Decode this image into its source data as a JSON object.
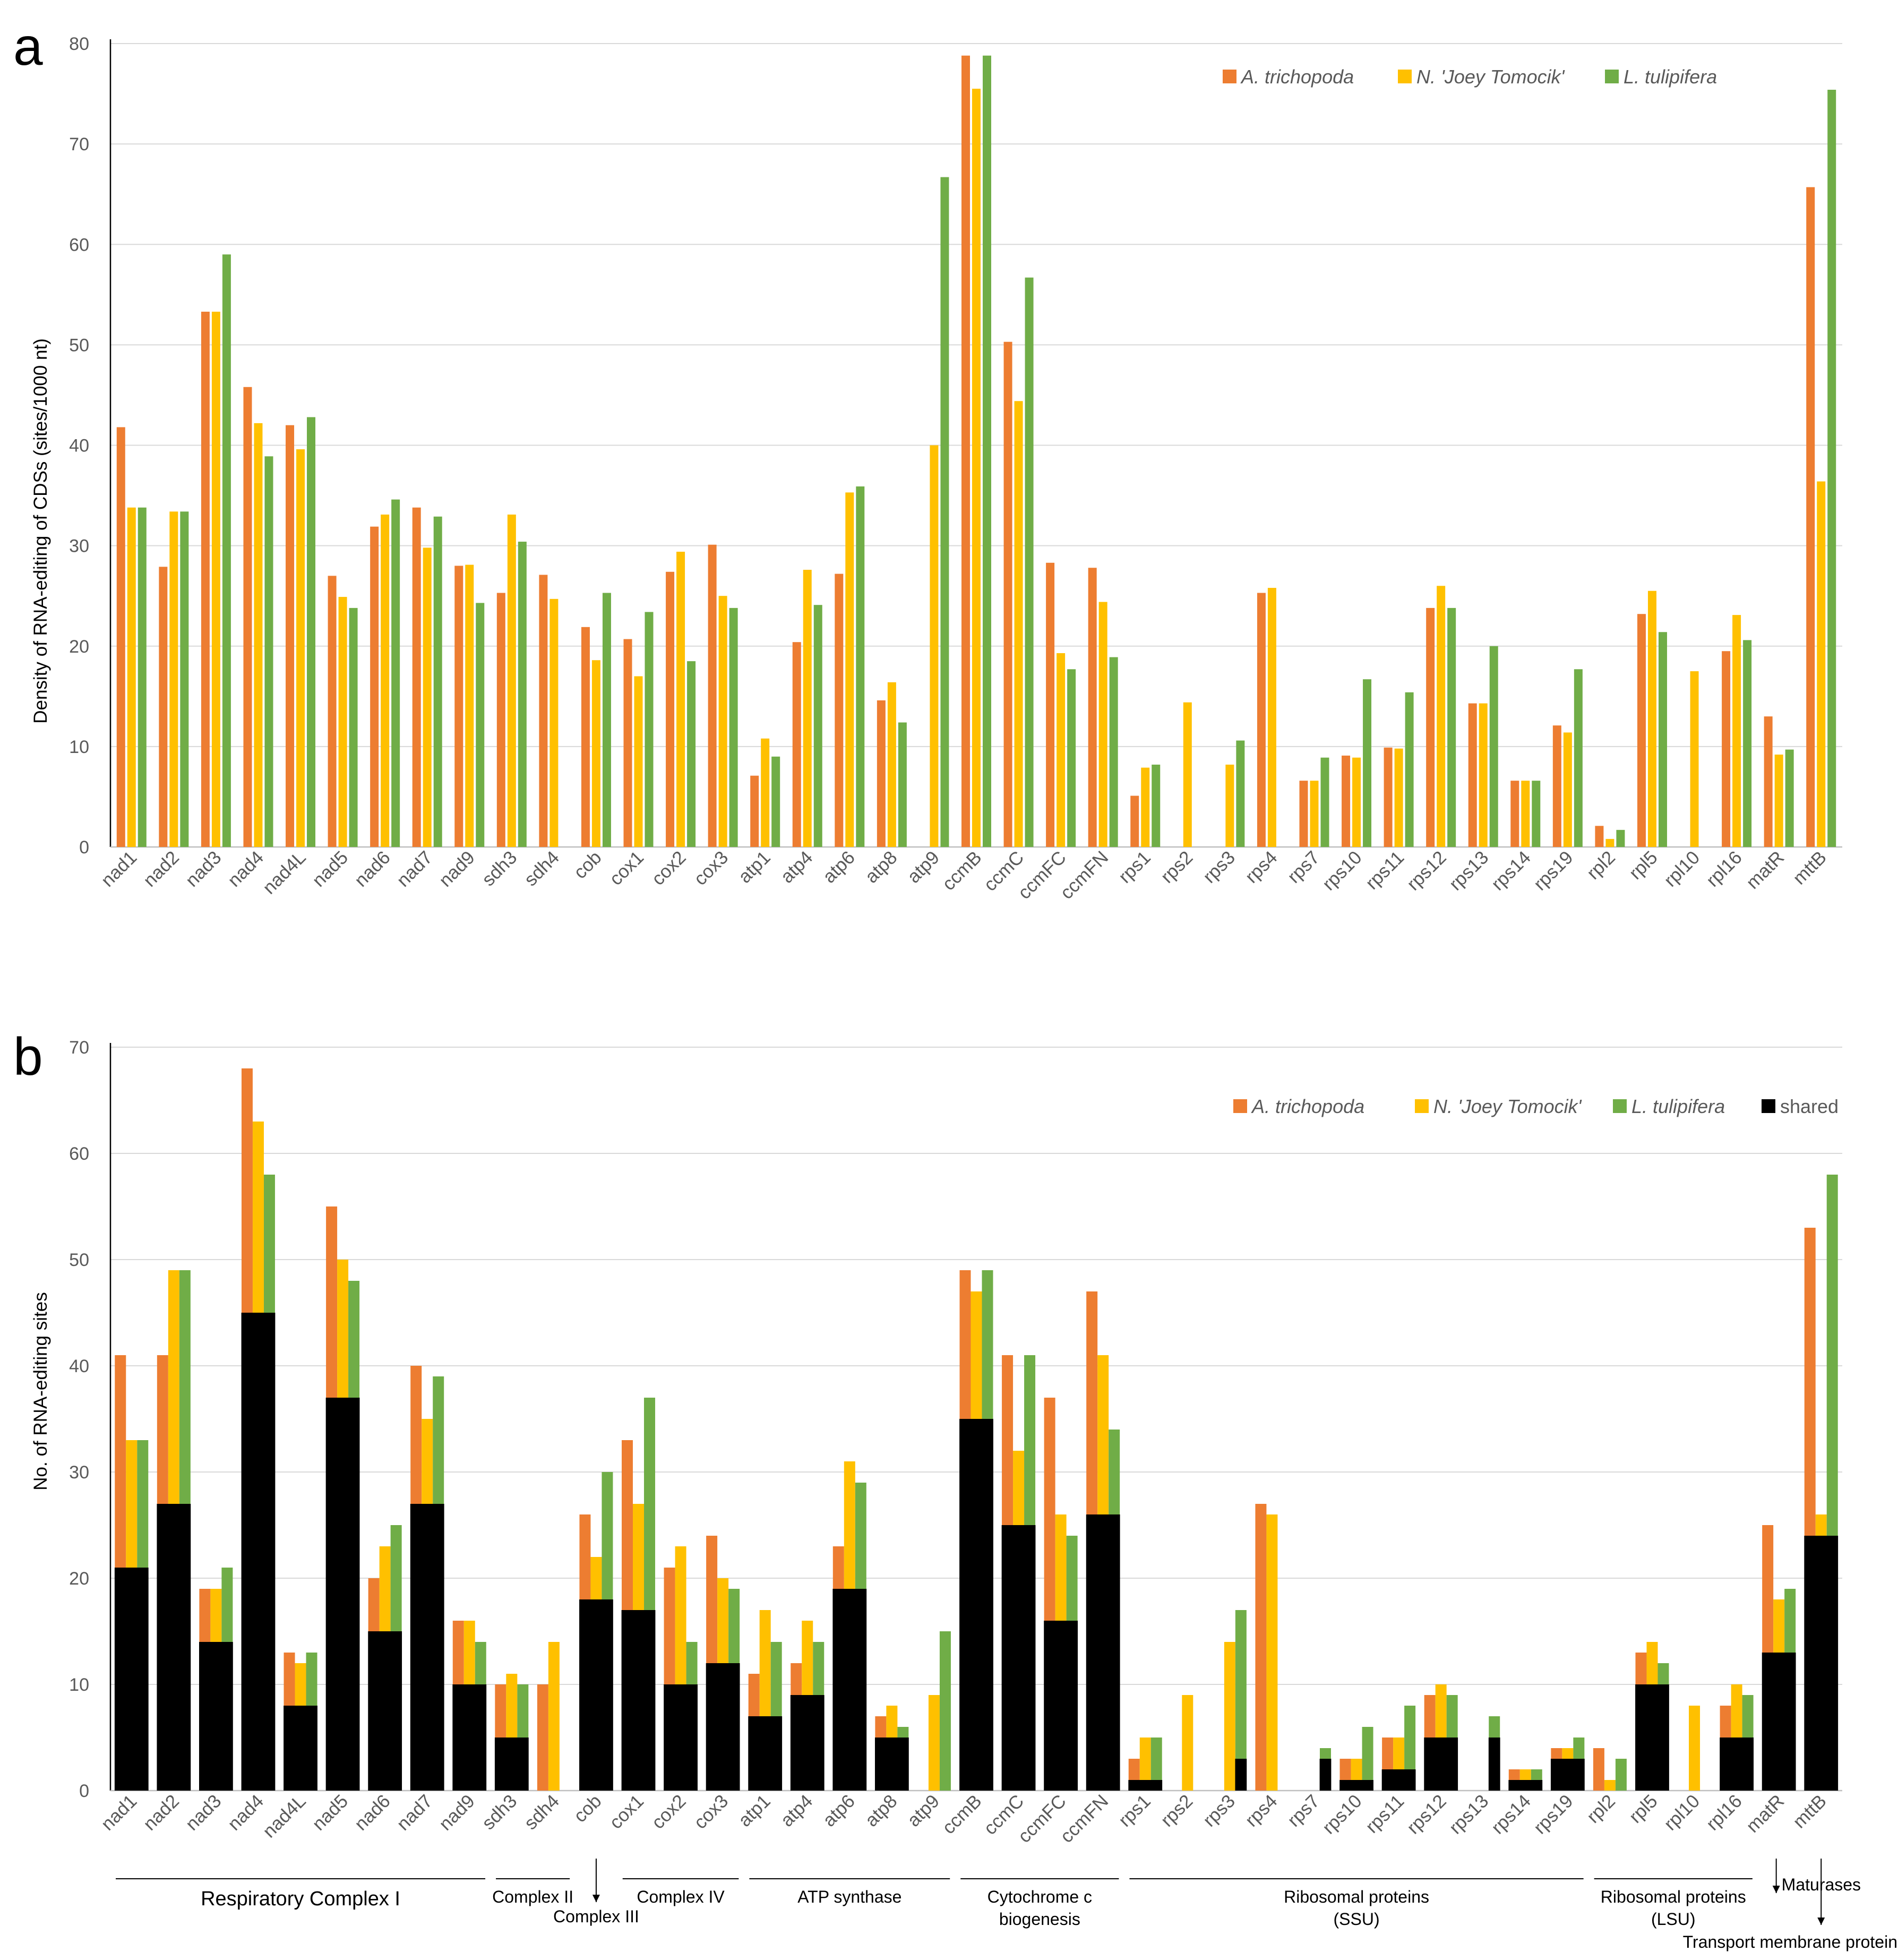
{
  "colors": {
    "a_trichopoda": "#ED7D31",
    "n_joey": "#FFC000",
    "l_tulipifera": "#70AD47",
    "shared": "#000000",
    "grid": "#d9d9d9",
    "axis_text": "#595959"
  },
  "categories": [
    "nad1",
    "nad2",
    "nad3",
    "nad4",
    "nad4L",
    "nad5",
    "nad6",
    "nad7",
    "nad9",
    "sdh3",
    "sdh4",
    "cob",
    "cox1",
    "cox2",
    "cox3",
    "atp1",
    "atp4",
    "atp6",
    "atp8",
    "atp9",
    "ccmB",
    "ccmC",
    "ccmFC",
    "ccmFN",
    "rps1",
    "rps2",
    "rps3",
    "rps4",
    "rps7",
    "rps10",
    "rps11",
    "rps12",
    "rps13",
    "rps14",
    "rps19",
    "rpl2",
    "rpl5",
    "rpl10",
    "rpl16",
    "matR",
    "mttB"
  ],
  "chart_data": [
    {
      "panel": "a",
      "type": "bar",
      "ylabel": "Density of RNA-editing of CDSs (sites/1000 nt)",
      "ylim": [
        0,
        80
      ],
      "yticks": [
        0,
        10,
        20,
        30,
        40,
        50,
        60,
        70,
        80
      ],
      "grid": true,
      "legend_position": "top-right",
      "series": [
        {
          "name": "A. trichopoda",
          "color_key": "a_trichopoda",
          "values": [
            41.8,
            27.9,
            53.3,
            45.8,
            42.0,
            27.0,
            31.9,
            33.8,
            28.0,
            25.3,
            27.1,
            21.9,
            20.7,
            27.4,
            30.1,
            7.1,
            20.4,
            27.2,
            14.6,
            0,
            78.8,
            50.3,
            28.3,
            27.8,
            5.1,
            0,
            0,
            25.3,
            6.6,
            9.1,
            9.9,
            23.8,
            14.3,
            6.6,
            12.1,
            2.1,
            23.2,
            0,
            19.5,
            13.0,
            65.7
          ]
        },
        {
          "name": "N. 'Joey Tomocik'",
          "color_key": "n_joey",
          "values": [
            33.8,
            33.4,
            53.3,
            42.2,
            39.6,
            24.9,
            33.1,
            29.8,
            28.1,
            33.1,
            24.7,
            18.6,
            17.0,
            29.4,
            25.0,
            10.8,
            27.6,
            35.3,
            16.4,
            40.0,
            75.5,
            44.4,
            19.3,
            24.4,
            7.9,
            14.4,
            8.2,
            25.8,
            6.6,
            8.9,
            9.8,
            26.0,
            14.3,
            6.6,
            11.4,
            0.8,
            25.5,
            17.5,
            23.1,
            9.2,
            36.4
          ]
        },
        {
          "name": "L. tulipifera",
          "color_key": "l_tulipifera",
          "values": [
            33.8,
            33.4,
            59.0,
            38.9,
            42.8,
            23.8,
            34.6,
            32.9,
            24.3,
            30.4,
            0,
            25.3,
            23.4,
            18.5,
            23.8,
            9.0,
            24.1,
            35.9,
            12.4,
            66.7,
            78.8,
            56.7,
            17.7,
            18.9,
            8.2,
            0,
            10.6,
            0,
            8.9,
            16.7,
            15.4,
            23.8,
            20.0,
            6.6,
            17.7,
            1.7,
            21.4,
            0,
            20.6,
            9.7,
            75.4
          ]
        }
      ]
    },
    {
      "panel": "b",
      "type": "bar",
      "stacked": true,
      "ylabel": "No. of RNA-editing sites",
      "ylim": [
        0,
        70
      ],
      "yticks": [
        0,
        10,
        20,
        30,
        40,
        50,
        60,
        70
      ],
      "grid": true,
      "legend_position": "top-right",
      "shared_name": "shared",
      "series": [
        {
          "name": "A. trichopoda",
          "color_key": "a_trichopoda",
          "totals": [
            41,
            41,
            19,
            68,
            13,
            55,
            20,
            40,
            16,
            10,
            10,
            26,
            33,
            21,
            24,
            11,
            12,
            23,
            7,
            0,
            49,
            41,
            37,
            47,
            3,
            0,
            0,
            27,
            0,
            3,
            5,
            9,
            0,
            2,
            4,
            4,
            13,
            0,
            8,
            25,
            53
          ],
          "shared": [
            21,
            27,
            14,
            45,
            8,
            37,
            15,
            27,
            10,
            5,
            0,
            18,
            17,
            10,
            12,
            7,
            9,
            19,
            5,
            0,
            35,
            25,
            16,
            26,
            1,
            0,
            0,
            0,
            0,
            1,
            2,
            5,
            0,
            1,
            3,
            0,
            10,
            0,
            5,
            13,
            24
          ]
        },
        {
          "name": "N. 'Joey Tomocik'",
          "color_key": "n_joey",
          "totals": [
            33,
            49,
            19,
            63,
            12,
            50,
            23,
            35,
            16,
            11,
            14,
            22,
            27,
            23,
            20,
            17,
            16,
            31,
            8,
            9,
            47,
            32,
            26,
            41,
            5,
            9,
            14,
            26,
            0,
            3,
            5,
            10,
            0,
            2,
            4,
            1,
            14,
            8,
            10,
            18,
            26
          ],
          "shared": [
            21,
            27,
            14,
            45,
            8,
            37,
            15,
            27,
            10,
            5,
            0,
            18,
            17,
            10,
            12,
            7,
            9,
            19,
            5,
            0,
            35,
            25,
            16,
            26,
            1,
            0,
            0,
            0,
            0,
            1,
            2,
            5,
            0,
            1,
            3,
            0,
            10,
            0,
            5,
            13,
            24
          ]
        },
        {
          "name": "L. tulipifera",
          "color_key": "l_tulipifera",
          "totals": [
            33,
            49,
            21,
            58,
            13,
            48,
            25,
            39,
            14,
            10,
            0,
            30,
            37,
            14,
            19,
            14,
            14,
            29,
            6,
            15,
            49,
            41,
            24,
            34,
            5,
            0,
            17,
            0,
            4,
            6,
            8,
            9,
            7,
            2,
            5,
            3,
            12,
            0,
            9,
            19,
            58
          ],
          "shared": [
            21,
            27,
            14,
            45,
            8,
            37,
            15,
            27,
            10,
            5,
            0,
            18,
            17,
            10,
            12,
            7,
            9,
            19,
            5,
            0,
            35,
            25,
            16,
            26,
            1,
            0,
            3,
            0,
            3,
            1,
            2,
            5,
            5,
            1,
            3,
            0,
            10,
            0,
            5,
            13,
            24
          ]
        }
      ],
      "groups": [
        {
          "label": "Respiratory Complex I",
          "from": 0,
          "to": 8,
          "style": "line"
        },
        {
          "label": "Complex II",
          "from": 9,
          "to": 10,
          "style": "line"
        },
        {
          "label": "Complex III",
          "from": 11,
          "to": 11,
          "style": "arrow"
        },
        {
          "label": "Complex IV",
          "from": 12,
          "to": 14,
          "style": "line"
        },
        {
          "label": "ATP synthase",
          "from": 15,
          "to": 19,
          "style": "line"
        },
        {
          "label": "Cytochrome c",
          "label2": "biogenesis",
          "from": 20,
          "to": 23,
          "style": "line"
        },
        {
          "label": "Ribosomal proteins",
          "label2": "(SSU)",
          "from": 24,
          "to": 34,
          "style": "line"
        },
        {
          "label": "Ribosomal proteins",
          "label2": "(LSU)",
          "from": 35,
          "to": 38,
          "style": "line"
        },
        {
          "label": "Maturases",
          "from": 39,
          "to": 39,
          "style": "arrow"
        },
        {
          "label": "Transport membrane protein",
          "from": 40,
          "to": 40,
          "style": "arrow"
        }
      ]
    }
  ],
  "panels": {
    "a": {
      "letter": "a"
    },
    "b": {
      "letter": "b"
    }
  },
  "legend": {
    "a_trichopoda": "A. trichopoda",
    "n_joey": "N. 'Joey Tomocik'",
    "l_tulipifera": "L. tulipifera",
    "shared": "shared"
  }
}
